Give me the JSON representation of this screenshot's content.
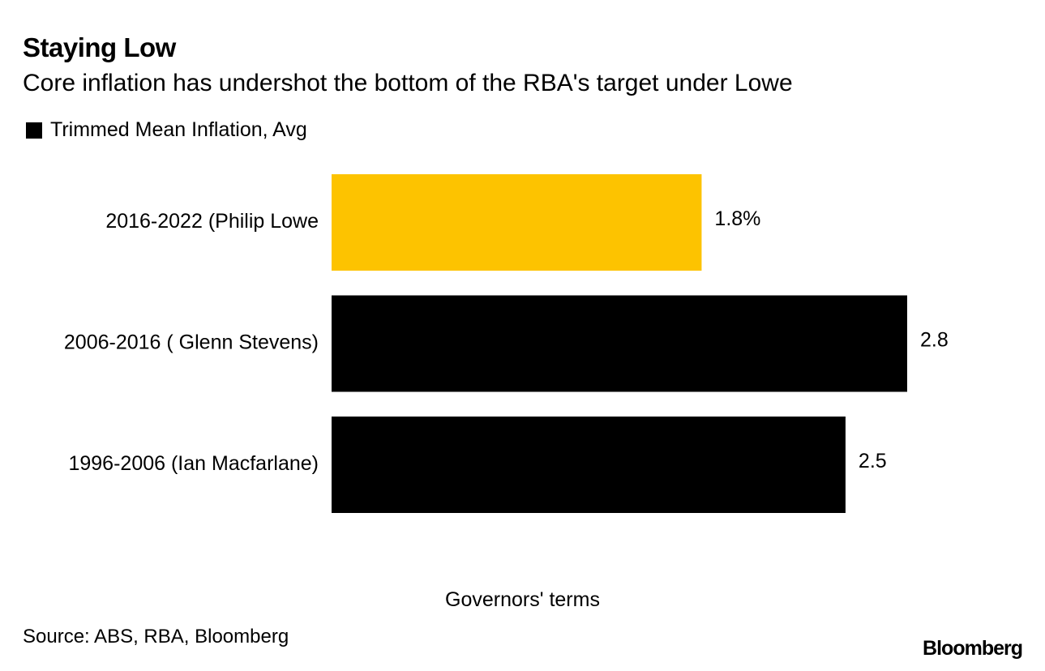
{
  "header": {
    "title": "Staying Low",
    "subtitle": "Core inflation has undershot the bottom of the RBA's target under Lowe"
  },
  "legend": {
    "label": "Trimmed Mean Inflation, Avg",
    "swatch_color": "#000000"
  },
  "chart_data": {
    "type": "bar",
    "orientation": "horizontal",
    "title": "Staying Low",
    "subtitle": "Core inflation has undershot the bottom of the RBA's target under Lowe",
    "xlabel": "",
    "ylabel": "Governors' terms",
    "categories": [
      "2016-2022 (Philip Lowe",
      "2006-2016 ( Glenn Stevens)",
      "1996-2006 (Ian Macfarlane)"
    ],
    "series": [
      {
        "name": "Trimmed Mean Inflation, Avg",
        "values": [
          1.8,
          2.8,
          2.5
        ]
      }
    ],
    "value_labels": [
      "1.8%",
      "2.8",
      "2.5"
    ],
    "bar_colors": [
      "#fdc300",
      "#000000",
      "#000000"
    ],
    "xlim": [
      0,
      2.8
    ],
    "grid": false,
    "legend_position": "top-left"
  },
  "footer": {
    "axis_title": "Governors' terms",
    "source": "Source: ABS, RBA, Bloomberg",
    "brand": "Bloomberg"
  }
}
